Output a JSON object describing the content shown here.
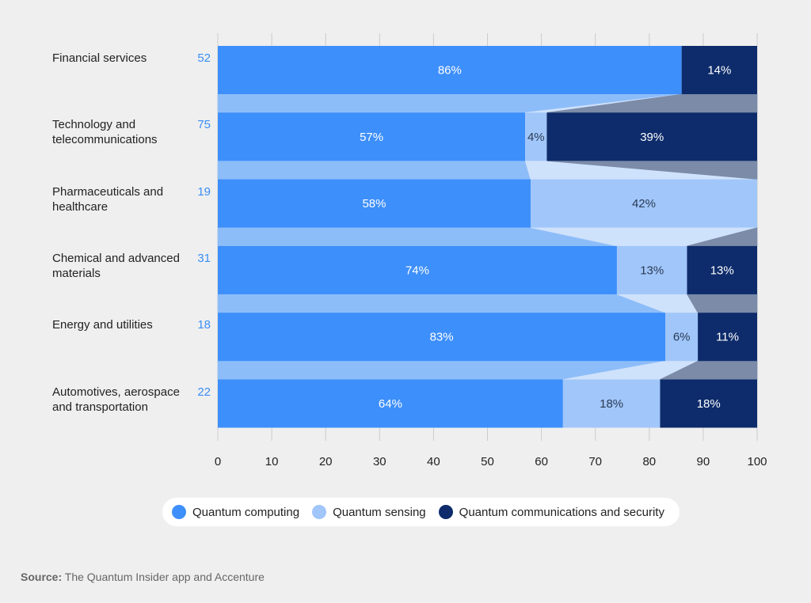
{
  "colors": {
    "quantum_computing": "#3d8ffb",
    "quantum_sensing": "#a1c6fa",
    "quantum_communications": "#0e2c6b",
    "count_label": "#3a8ef6",
    "grid": "#cccccc",
    "connector_computing": "#8dbdf9",
    "connector_sensing": "#cfe2fb",
    "connector_communications": "#7b8ba8"
  },
  "chart_data": {
    "type": "bar",
    "stacked": true,
    "orientation": "horizontal",
    "categories": [
      "Financial services",
      "Technology and telecommunications",
      "Pharmaceuticals and healthcare",
      "Chemical and advanced materials",
      "Energy and utilities",
      "Automotives, aerospace and transportation"
    ],
    "category_lines": [
      [
        "Financial services"
      ],
      [
        "Technology and",
        "telecommunications"
      ],
      [
        "Pharmaceuticals and",
        "healthcare"
      ],
      [
        "Chemical and advanced",
        "materials"
      ],
      [
        "Energy and utilities"
      ],
      [
        "Automotives, aerospace",
        "and transportation"
      ]
    ],
    "counts": [
      "52",
      "75",
      "19",
      "31",
      "18",
      "22"
    ],
    "series": [
      {
        "name": "Quantum computing",
        "color_key": "quantum_computing",
        "label_color": "#ffffff",
        "values": [
          86,
          57,
          58,
          74,
          83,
          64
        ],
        "labels": [
          "86%",
          "57%",
          "58%",
          "74%",
          "83%",
          "64%"
        ]
      },
      {
        "name": "Quantum sensing",
        "color_key": "quantum_sensing",
        "label_color": "#2a3b55",
        "values": [
          0,
          4,
          42,
          13,
          6,
          18
        ],
        "labels": [
          "",
          "4%",
          "42%",
          "13%",
          "6%",
          "18%"
        ]
      },
      {
        "name": "Quantum communications and security",
        "color_key": "quantum_communications",
        "label_color": "#ffffff",
        "values": [
          14,
          39,
          0,
          13,
          11,
          18
        ],
        "labels": [
          "14%",
          "39%",
          "",
          "13%",
          "11%",
          "18%"
        ]
      }
    ],
    "xlim": [
      0,
      100
    ],
    "xticks": [
      0,
      10,
      20,
      30,
      40,
      50,
      60,
      70,
      80,
      90,
      100
    ],
    "xtick_labels": [
      "0",
      "10",
      "20",
      "30",
      "40",
      "50",
      "60",
      "70",
      "80",
      "90",
      "100"
    ],
    "grid": true,
    "legend_position": "bottom-center",
    "xlabel": "",
    "ylabel": ""
  },
  "legend": {
    "items": [
      {
        "label": "Quantum computing",
        "color_key": "quantum_computing"
      },
      {
        "label": "Quantum sensing",
        "color_key": "quantum_sensing"
      },
      {
        "label": "Quantum communications and security",
        "color_key": "quantum_communications"
      }
    ]
  },
  "source": {
    "prefix": "Source:",
    "text": " The Quantum Insider app and Accenture"
  }
}
